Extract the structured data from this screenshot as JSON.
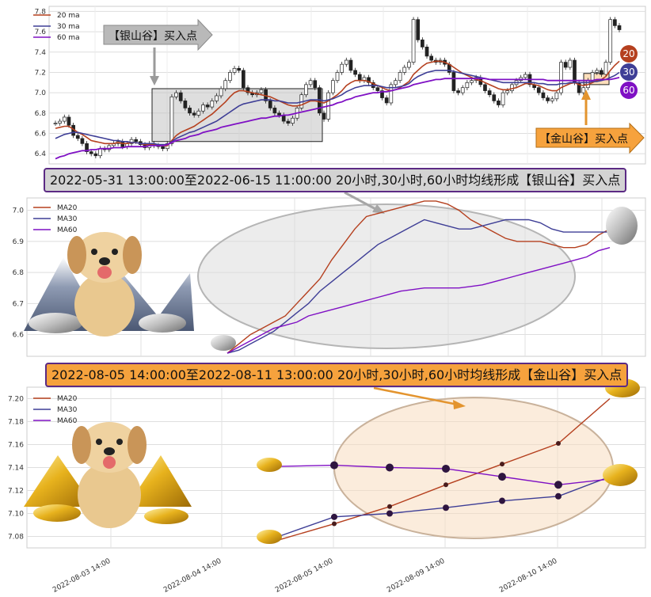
{
  "banners": {
    "silver": "2022-05-31 13:00:00至2022-06-15 11:00:00 20小时,30小时,60小时均线形成【银山谷】买入点",
    "gold": "2022-08-05 14:00:00至2022-08-11 13:00:00 20小时,30小时,60小时均线形成【金山谷】买入点"
  },
  "callouts": {
    "silver": "【银山谷】买入点",
    "gold": "【金山谷】买入点"
  },
  "badges": [
    "20",
    "30",
    "60"
  ],
  "colors": {
    "ma20": "#b5401f",
    "ma30": "#3e3e96",
    "ma60": "#7f10c4",
    "badge20": "#b5401f",
    "badge30": "#3e3e96",
    "badge60": "#7f10c4",
    "silver": "#cfcfcf",
    "gold": "#f6a23d"
  },
  "chart_data": [
    {
      "type": "candlestick",
      "legend": [
        "20 ma",
        "30 ma",
        "60 ma"
      ],
      "legend_position": "top-left",
      "ylim": [
        6.3,
        7.85
      ],
      "yticks": [
        6.4,
        6.6,
        6.8,
        7.0,
        7.2,
        7.4,
        7.6,
        7.8
      ],
      "grid": true,
      "close": [
        6.7,
        6.72,
        6.76,
        6.68,
        6.58,
        6.55,
        6.5,
        6.42,
        6.4,
        6.38,
        6.45,
        6.44,
        6.48,
        6.5,
        6.52,
        6.47,
        6.5,
        6.54,
        6.52,
        6.49,
        6.46,
        6.5,
        6.48,
        6.47,
        6.45,
        6.5,
        6.96,
        7.0,
        6.92,
        6.85,
        6.8,
        6.78,
        6.82,
        6.88,
        6.86,
        6.92,
        6.97,
        7.04,
        7.12,
        7.2,
        7.24,
        7.22,
        7.05,
        7.0,
        6.98,
        7.0,
        7.03,
        6.92,
        6.85,
        6.8,
        6.78,
        6.72,
        6.7,
        6.75,
        6.85,
        6.98,
        7.08,
        7.12,
        7.05,
        6.8,
        6.74,
        7.0,
        7.12,
        7.2,
        7.28,
        7.32,
        7.22,
        7.18,
        7.12,
        7.15,
        7.1,
        7.05,
        7.02,
        6.95,
        6.9,
        7.08,
        7.12,
        7.2,
        7.25,
        7.3,
        7.72,
        7.52,
        7.45,
        7.36,
        7.32,
        7.3,
        7.32,
        7.28,
        7.2,
        7.02,
        7.0,
        7.05,
        7.1,
        7.12,
        7.15,
        7.08,
        7.02,
        6.98,
        6.92,
        6.88,
        7.0,
        7.02,
        7.08,
        7.12,
        7.15,
        7.18,
        7.08,
        7.05,
        7.0,
        6.95,
        6.92,
        6.94,
        7.0,
        7.3,
        7.25,
        7.32,
        7.1,
        7.0,
        7.05,
        7.12,
        7.2,
        7.22,
        7.18,
        7.3,
        7.72,
        7.66,
        7.62
      ],
      "ma20": [
        6.65,
        6.66,
        6.67,
        6.67,
        6.64,
        6.61,
        6.59,
        6.56,
        6.53,
        6.52,
        6.51,
        6.5,
        6.5,
        6.5,
        6.51,
        6.5,
        6.5,
        6.51,
        6.51,
        6.5,
        6.49,
        6.49,
        6.49,
        6.48,
        6.48,
        6.48,
        6.53,
        6.58,
        6.61,
        6.63,
        6.65,
        6.67,
        6.7,
        6.73,
        6.76,
        6.79,
        6.83,
        6.87,
        6.91,
        6.96,
        7.0,
        7.02,
        7.02,
        7.01,
        7.0,
        6.99,
        6.98,
        6.97,
        6.96,
        6.94,
        6.92,
        6.9,
        6.88,
        6.87,
        6.87,
        6.88,
        6.9,
        6.92,
        6.92,
        6.91,
        6.9,
        6.92,
        6.95,
        6.98,
        7.02,
        7.07,
        7.1,
        7.12,
        7.12,
        7.12,
        7.11,
        7.09,
        7.07,
        7.05,
        7.03,
        7.02,
        7.03,
        7.05,
        7.08,
        7.11,
        7.18,
        7.22,
        7.26,
        7.29,
        7.3,
        7.31,
        7.31,
        7.3,
        7.28,
        7.25,
        7.22,
        7.19,
        7.17,
        7.15,
        7.13,
        7.12,
        7.1,
        7.08,
        7.06,
        7.04,
        7.03,
        7.03,
        7.04,
        7.05,
        7.07,
        7.09,
        7.09,
        7.08,
        7.07,
        7.05,
        7.03,
        7.02,
        7.02,
        7.05,
        7.07,
        7.09,
        7.1,
        7.08,
        7.07,
        7.08,
        7.1,
        7.12,
        7.13,
        7.16,
        7.22,
        7.27,
        7.31
      ],
      "ma30": [
        6.55,
        6.57,
        6.59,
        6.6,
        6.61,
        6.61,
        6.6,
        6.59,
        6.58,
        6.57,
        6.56,
        6.55,
        6.54,
        6.53,
        6.53,
        6.52,
        6.52,
        6.51,
        6.51,
        6.5,
        6.5,
        6.5,
        6.5,
        6.49,
        6.49,
        6.49,
        6.52,
        6.55,
        6.57,
        6.59,
        6.61,
        6.62,
        6.64,
        6.66,
        6.68,
        6.7,
        6.72,
        6.75,
        6.78,
        6.81,
        6.84,
        6.87,
        6.89,
        6.9,
        6.91,
        6.92,
        6.93,
        6.93,
        6.93,
        6.92,
        6.92,
        6.91,
        6.9,
        6.9,
        6.9,
        6.91,
        6.92,
        6.93,
        6.93,
        6.93,
        6.92,
        6.93,
        6.94,
        6.96,
        6.98,
        7.01,
        7.03,
        7.05,
        7.06,
        7.07,
        7.07,
        7.07,
        7.07,
        7.06,
        7.05,
        7.05,
        7.05,
        7.06,
        7.07,
        7.09,
        7.13,
        7.16,
        7.18,
        7.2,
        7.21,
        7.22,
        7.22,
        7.22,
        7.22,
        7.21,
        7.2,
        7.19,
        7.18,
        7.17,
        7.16,
        7.15,
        7.14,
        7.13,
        7.12,
        7.11,
        7.1,
        7.1,
        7.1,
        7.1,
        7.1,
        7.1,
        7.1,
        7.1,
        7.09,
        7.09,
        7.08,
        7.08,
        7.08,
        7.09,
        7.09,
        7.1,
        7.1,
        7.1,
        7.1,
        7.1,
        7.11,
        7.11,
        7.12,
        7.13,
        7.15,
        7.17,
        7.2
      ],
      "ma60": [
        6.35,
        6.37,
        6.38,
        6.4,
        6.41,
        6.42,
        6.43,
        6.43,
        6.44,
        6.44,
        6.45,
        6.45,
        6.45,
        6.46,
        6.46,
        6.46,
        6.47,
        6.47,
        6.47,
        6.47,
        6.47,
        6.48,
        6.48,
        6.48,
        6.48,
        6.49,
        6.51,
        6.53,
        6.54,
        6.55,
        6.57,
        6.58,
        6.59,
        6.61,
        6.62,
        6.63,
        6.64,
        6.66,
        6.67,
        6.68,
        6.69,
        6.7,
        6.71,
        6.72,
        6.73,
        6.74,
        6.75,
        6.75,
        6.76,
        6.77,
        6.77,
        6.78,
        6.78,
        6.79,
        6.8,
        6.81,
        6.82,
        6.83,
        6.84,
        6.85,
        6.86,
        6.87,
        6.88,
        6.9,
        6.91,
        6.93,
        6.94,
        6.96,
        6.97,
        6.98,
        6.99,
        7.0,
        7.0,
        7.01,
        7.01,
        7.02,
        7.03,
        7.04,
        7.05,
        7.06,
        7.08,
        7.09,
        7.1,
        7.11,
        7.12,
        7.13,
        7.13,
        7.14,
        7.14,
        7.14,
        7.14,
        7.14,
        7.14,
        7.14,
        7.14,
        7.14,
        7.14,
        7.13,
        7.13,
        7.13,
        7.13,
        7.13,
        7.13,
        7.13,
        7.13,
        7.13,
        7.13,
        7.13,
        7.13,
        7.13,
        7.12,
        7.12,
        7.12,
        7.12,
        7.12,
        7.12,
        7.12,
        7.12,
        7.12,
        7.12,
        7.12,
        7.13,
        7.13,
        7.13,
        7.13,
        7.14,
        7.15
      ]
    },
    {
      "type": "line",
      "legend": [
        "MA20",
        "MA30",
        "MA60"
      ],
      "legend_position": "top-left",
      "ylim": [
        6.53,
        7.04
      ],
      "yticks": [
        6.6,
        6.7,
        6.8,
        6.9,
        7.0
      ],
      "grid": true,
      "series": [
        {
          "name": "MA20",
          "values": [
            6.54,
            6.57,
            6.6,
            6.62,
            6.64,
            6.66,
            6.7,
            6.74,
            6.78,
            6.84,
            6.89,
            6.94,
            6.98,
            6.99,
            7.0,
            7.01,
            7.02,
            7.03,
            7.03,
            7.02,
            7.0,
            6.97,
            6.95,
            6.93,
            6.91,
            6.9,
            6.9,
            6.9,
            6.89,
            6.88,
            6.88,
            6.89,
            6.92,
            6.94
          ]
        },
        {
          "name": "MA30",
          "values": [
            6.54,
            6.55,
            6.57,
            6.59,
            6.61,
            6.64,
            6.67,
            6.7,
            6.74,
            6.77,
            6.8,
            6.83,
            6.86,
            6.89,
            6.91,
            6.93,
            6.95,
            6.97,
            6.96,
            6.95,
            6.94,
            6.94,
            6.95,
            6.96,
            6.97,
            6.97,
            6.97,
            6.96,
            6.94,
            6.93,
            6.93,
            6.93,
            6.93,
            6.93
          ]
        },
        {
          "name": "MA60",
          "values": [
            6.54,
            6.56,
            6.58,
            6.6,
            6.62,
            6.63,
            6.64,
            6.66,
            6.67,
            6.68,
            6.69,
            6.7,
            6.71,
            6.72,
            6.73,
            6.74,
            6.745,
            6.75,
            6.75,
            6.75,
            6.75,
            6.755,
            6.76,
            6.77,
            6.78,
            6.79,
            6.8,
            6.81,
            6.82,
            6.83,
            6.84,
            6.85,
            6.87,
            6.88
          ]
        }
      ]
    },
    {
      "type": "line",
      "legend": [
        "MA20",
        "MA30",
        "MA60"
      ],
      "legend_position": "top-left",
      "ylim": [
        7.07,
        7.21
      ],
      "yticks": [
        7.08,
        7.1,
        7.12,
        7.14,
        7.16,
        7.18,
        7.2
      ],
      "xticks": [
        "2022-08-03 14:00",
        "2022-08-04 14:00",
        "2022-08-05 14:00",
        "2022-08-09 14:00",
        "2022-08-10 14:00"
      ],
      "grid": true,
      "series": [
        {
          "name": "MA20",
          "values": [
            7.077,
            7.091,
            7.106,
            7.125,
            7.143,
            7.161,
            7.2
          ]
        },
        {
          "name": "MA30",
          "values": [
            7.08,
            7.097,
            7.1,
            7.105,
            7.111,
            7.115,
            7.132
          ]
        },
        {
          "name": "MA60",
          "values": [
            7.141,
            7.142,
            7.14,
            7.139,
            7.132,
            7.125,
            7.13
          ]
        }
      ]
    }
  ]
}
